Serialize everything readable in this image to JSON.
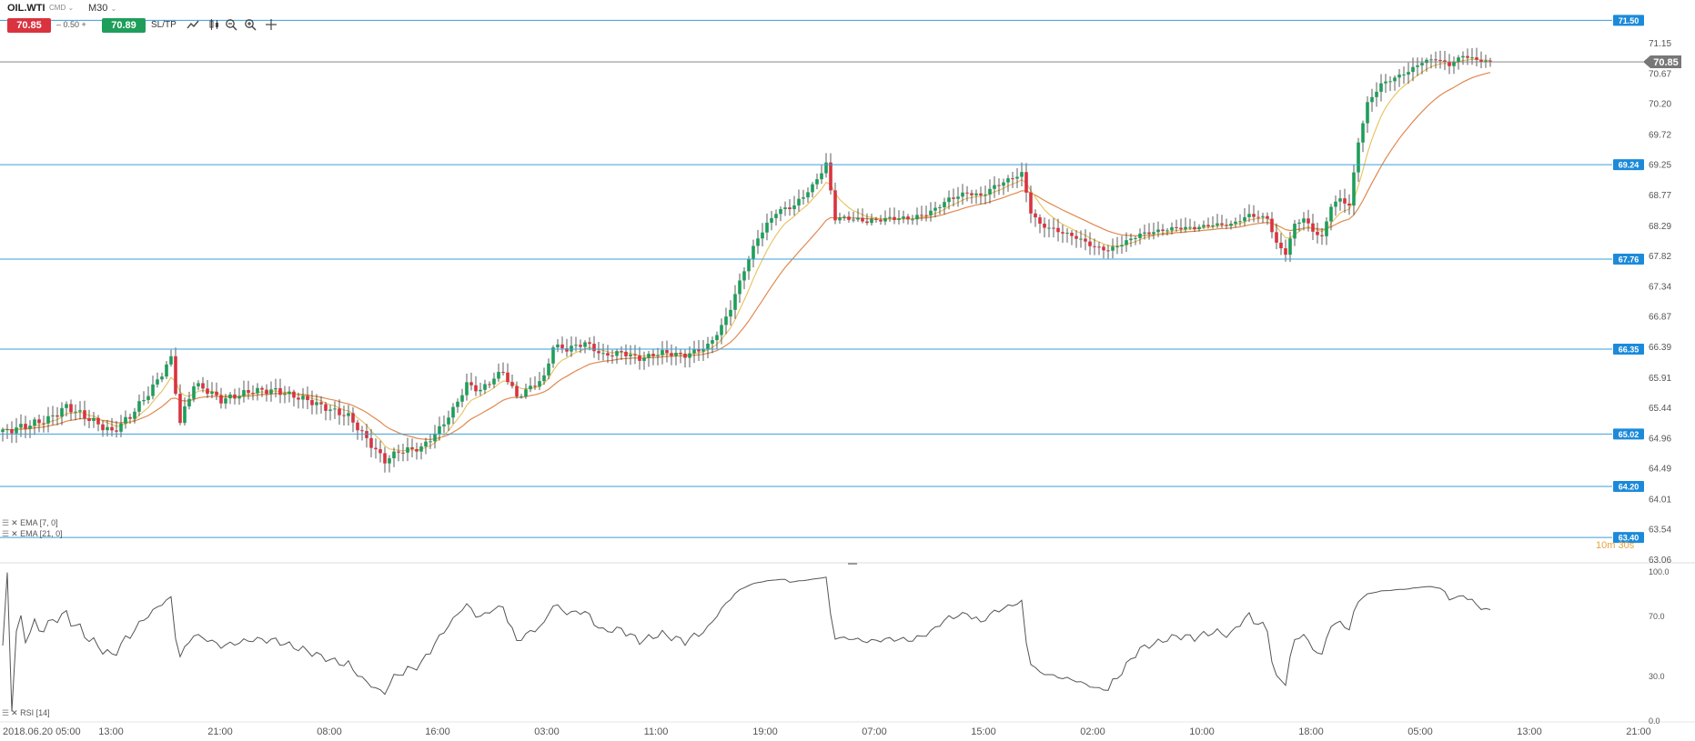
{
  "header": {
    "symbol": "OIL.WTI",
    "market": "CMD",
    "timeframe": "M30",
    "bid": "70.85",
    "lot": "0.50",
    "ask": "70.89",
    "sltp": "SL/TP",
    "icons": [
      "line-chart-icon",
      "candles-icon",
      "zoom-out-icon",
      "zoom-in-icon",
      "crosshair-icon"
    ]
  },
  "indicators": {
    "ema7": "EMA [7, 0]",
    "ema21": "EMA [21, 0]",
    "rsi": "RSI [14]"
  },
  "colors": {
    "bull": "#1e9e5a",
    "bear": "#d9333f",
    "level_line": "#3a9fd8",
    "level_tag": "#1c8ad9",
    "ema7": "#e8c05c",
    "ema21": "#e0894f",
    "rsi": "#555555",
    "current_price_tag": "#777777"
  },
  "chart_data": [
    {
      "type": "candlestick",
      "timeframe": "M30",
      "ylim": [
        63.06,
        71.62
      ],
      "y_ticks": [
        "71.15",
        "70.67",
        "70.20",
        "69.72",
        "69.25",
        "68.77",
        "68.29",
        "67.82",
        "67.34",
        "66.87",
        "66.39",
        "65.91",
        "65.44",
        "64.96",
        "64.49",
        "64.01",
        "63.54",
        "63.06"
      ],
      "x_ticks": [
        "2018.06.20 05:00",
        "13:00",
        "21:00",
        "08:00",
        "16:00",
        "03:00",
        "11:00",
        "19:00",
        "07:00",
        "15:00",
        "02:00",
        "10:00",
        "18:00",
        "05:00",
        "13:00",
        "21:00"
      ],
      "levels": [
        "71.50",
        "69.24",
        "67.76",
        "66.35",
        "65.02",
        "64.20",
        "63.40"
      ],
      "current_price": "70.85",
      "countdown": "10m 30s",
      "close_anchors": [
        [
          0,
          65.05
        ],
        [
          10,
          65.25
        ],
        [
          14,
          65.45
        ],
        [
          18,
          65.3
        ],
        [
          24,
          65.05
        ],
        [
          28,
          65.3
        ],
        [
          33,
          65.75
        ],
        [
          37,
          66.2
        ],
        [
          39,
          65.2
        ],
        [
          42,
          65.8
        ],
        [
          45,
          65.7
        ],
        [
          48,
          65.55
        ],
        [
          55,
          65.7
        ],
        [
          60,
          65.7
        ],
        [
          67,
          65.55
        ],
        [
          72,
          65.4
        ],
        [
          76,
          65.3
        ],
        [
          81,
          64.85
        ],
        [
          84,
          64.6
        ],
        [
          87,
          64.75
        ],
        [
          92,
          64.8
        ],
        [
          96,
          65.1
        ],
        [
          99,
          65.4
        ],
        [
          102,
          65.8
        ],
        [
          105,
          65.7
        ],
        [
          108,
          65.9
        ],
        [
          110,
          66.0
        ],
        [
          113,
          65.6
        ],
        [
          116,
          65.75
        ],
        [
          119,
          65.9
        ],
        [
          121,
          66.4
        ],
        [
          124,
          66.35
        ],
        [
          128,
          66.45
        ],
        [
          132,
          66.25
        ],
        [
          136,
          66.3
        ],
        [
          140,
          66.2
        ],
        [
          145,
          66.3
        ],
        [
          150,
          66.25
        ],
        [
          155,
          66.4
        ],
        [
          158,
          66.7
        ],
        [
          160,
          67.0
        ],
        [
          163,
          67.6
        ],
        [
          166,
          68.1
        ],
        [
          170,
          68.5
        ],
        [
          174,
          68.6
        ],
        [
          178,
          68.9
        ],
        [
          181,
          69.25
        ],
        [
          183,
          68.4
        ],
        [
          186,
          68.4
        ],
        [
          190,
          68.35
        ],
        [
          195,
          68.4
        ],
        [
          200,
          68.4
        ],
        [
          204,
          68.5
        ],
        [
          208,
          68.7
        ],
        [
          212,
          68.8
        ],
        [
          215,
          68.75
        ],
        [
          218,
          68.9
        ],
        [
          221,
          69.0
        ],
        [
          224,
          69.1
        ],
        [
          226,
          68.5
        ],
        [
          228,
          68.3
        ],
        [
          232,
          68.2
        ],
        [
          236,
          68.1
        ],
        [
          240,
          67.95
        ],
        [
          243,
          67.9
        ],
        [
          246,
          68.0
        ],
        [
          250,
          68.15
        ],
        [
          254,
          68.2
        ],
        [
          258,
          68.25
        ],
        [
          262,
          68.25
        ],
        [
          266,
          68.3
        ],
        [
          270,
          68.3
        ],
        [
          274,
          68.45
        ],
        [
          278,
          68.4
        ],
        [
          280,
          68.0
        ],
        [
          282,
          67.85
        ],
        [
          284,
          68.3
        ],
        [
          286,
          68.4
        ],
        [
          288,
          68.2
        ],
        [
          290,
          68.1
        ],
        [
          292,
          68.6
        ],
        [
          294,
          68.7
        ],
        [
          296,
          68.6
        ],
        [
          298,
          69.6
        ],
        [
          300,
          70.2
        ],
        [
          303,
          70.5
        ],
        [
          306,
          70.6
        ],
        [
          309,
          70.7
        ],
        [
          312,
          70.85
        ],
        [
          315,
          70.9
        ],
        [
          318,
          70.8
        ],
        [
          321,
          70.95
        ],
        [
          324,
          70.88
        ],
        [
          327,
          70.85
        ]
      ],
      "ema7_label": "EMA [7, 0]",
      "ema21_label": "EMA [21, 0]"
    },
    {
      "type": "line",
      "title": "RSI [14]",
      "ylim": [
        0,
        100
      ],
      "y_ticks": [
        "100.0",
        "70.0",
        "30.0",
        "0.0"
      ],
      "series": [
        {
          "name": "RSI [14]",
          "source": "computed from candle closes"
        }
      ]
    }
  ]
}
